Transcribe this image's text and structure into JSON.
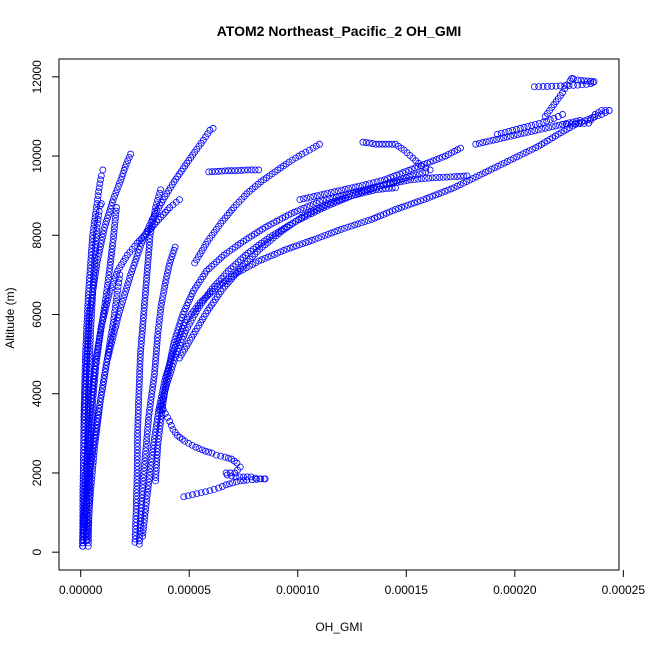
{
  "chart_data": {
    "type": "scatter",
    "title": "ATOM2 Northeast_Pacific_2 OH_GMI",
    "xlabel": "OH_GMI",
    "ylabel": "Altitude (m)",
    "xlim": [
      -1e-05,
      0.000248
    ],
    "ylim": [
      -450,
      12450
    ],
    "xticks": [
      0,
      5e-05,
      0.0001,
      0.00015,
      0.0002,
      0.00025
    ],
    "xtick_labels": [
      "0.00000",
      "0.00005",
      "0.00010",
      "0.00015",
      "0.00020",
      "0.00025"
    ],
    "yticks": [
      0,
      2000,
      4000,
      6000,
      8000,
      10000,
      12000
    ],
    "ytick_labels": [
      "0",
      "2000",
      "4000",
      "6000",
      "8000",
      "10000",
      "12000"
    ],
    "marker": "open-circle",
    "grid": false,
    "legend": "none",
    "colors": {
      "points": "#0000ff",
      "axes": "#000000"
    },
    "series": [
      {
        "x": [
          8e-07,
          1e-06,
          1.2e-06,
          1.5e-06,
          2.2e-06,
          3.5e-06,
          5.5e-06,
          7.5e-06,
          8.5e-06,
          9.5e-06,
          1.02e-05
        ],
        "y": [
          150,
          900,
          2000,
          3500,
          5000,
          6500,
          8000,
          8800,
          9200,
          9500,
          9650
        ]
      },
      {
        "x": [
          2.5e-06,
          2.8e-06,
          3e-06,
          3.5e-06,
          4.5e-06,
          6e-06,
          7.5e-06,
          8.5e-06,
          9e-06,
          9.5e-06
        ],
        "y": [
          300,
          1200,
          2500,
          4000,
          5500,
          7000,
          8200,
          8600,
          8750,
          8800
        ]
      },
      {
        "x": [
          1e-06,
          1e-06,
          1.5e-06,
          2.5e-06,
          4e-06,
          7.5e-06,
          1.1e-05,
          1.5e-05,
          1.85e-05,
          2.1e-05,
          2.3e-05
        ],
        "y": [
          150,
          1500,
          3000,
          4500,
          6000,
          7300,
          8200,
          8900,
          9400,
          9800,
          10050
        ]
      },
      {
        "x": [
          3e-06,
          4.5e-06,
          6.5e-06,
          9e-06,
          1.2e-05,
          1.5e-05,
          1.7e-05,
          1.8e-05
        ],
        "y": [
          300,
          1500,
          2700,
          3800,
          4800,
          5800,
          6600,
          7000
        ]
      },
      {
        "x": [
          1e-06,
          3.5e-06,
          7.5e-06,
          1.2e-05,
          1.75e-05,
          2.3e-05,
          2.8e-05,
          3.3e-05,
          3.8e-05,
          4.3e-05,
          4.8e-05,
          5.25e-05,
          5.65e-05,
          5.95e-05,
          6.1e-05
        ],
        "y": [
          300,
          1800,
          3300,
          4800,
          6000,
          7000,
          7800,
          8400,
          8900,
          9350,
          9750,
          10100,
          10400,
          10650,
          10700
        ]
      },
      {
        "x": [
          3.5e-06,
          4e-06,
          4.5e-06,
          5.5e-06,
          7e-06,
          9e-06,
          1.1e-05,
          1.3e-05,
          1.5e-05,
          1.65e-05
        ],
        "y": [
          150,
          1500,
          2800,
          3800,
          4700,
          5500,
          6200,
          7000,
          7900,
          8700
        ]
      },
      {
        "x": [
          9e-07,
          2.2e-06,
          4e-06,
          6.5e-06,
          9.5e-06,
          1.3e-05,
          1.7e-05,
          2.15e-05,
          2.6e-05,
          3.1e-05,
          3.6e-05,
          4.1e-05,
          4.55e-05
        ],
        "y": [
          300,
          1800,
          3300,
          4700,
          5700,
          6500,
          7100,
          7500,
          7800,
          8100,
          8400,
          8700,
          8900
        ]
      },
      {
        "x": [
          2.5e-05,
          2.55e-05,
          2.6e-05,
          2.62e-05,
          2.68e-05,
          2.75e-05,
          2.9e-05,
          3.05e-05,
          3.2e-05,
          3.45e-05,
          3.68e-05
        ],
        "y": [
          250,
          1000,
          2000,
          3000,
          4000,
          5000,
          6000,
          7000,
          8000,
          8700,
          9150
        ]
      },
      {
        "x": [
          2.7e-05,
          2.8e-05,
          2.95e-05,
          3.15e-05,
          3.4e-05,
          3.55e-05,
          3.7e-05,
          3.9e-05,
          4.1e-05,
          4.35e-05
        ],
        "y": [
          200,
          1200,
          2300,
          3500,
          4500,
          5500,
          6200,
          6800,
          7300,
          7700
        ]
      },
      {
        "x": [
          2.85e-05,
          3.1e-05,
          3.35e-05,
          3.6e-05,
          3.9e-05,
          4.3e-05,
          4.8e-05,
          5.5e-05,
          6.3e-05,
          7.2e-05,
          8.2e-05,
          9.5e-05,
          0.000108,
          0.00012,
          0.000134,
          0.000145,
          0.000158,
          0.000172,
          0.000185,
          0.000198,
          0.000211,
          0.00022,
          0.000228,
          0.000235,
          0.00024,
          0.0002435
        ],
        "y": [
          400,
          1600,
          2700,
          3600,
          4400,
          5100,
          5800,
          6300,
          6700,
          7050,
          7350,
          7650,
          7900,
          8150,
          8400,
          8650,
          8900,
          9200,
          9550,
          9900,
          10250,
          10550,
          10800,
          10950,
          11050,
          11150
        ]
      },
      {
        "x": [
          3.45e-05,
          3.55e-05,
          3.75e-05,
          4e-05,
          4.3e-05,
          4.7e-05,
          5.2e-05,
          5.8e-05,
          6.6e-05,
          7.5e-05,
          8.5e-05,
          9.7e-05,
          0.00011,
          0.000124,
          0.000138,
          0.000152,
          0.000162,
          0.000172,
          0.000178
        ],
        "y": [
          1800,
          2700,
          3600,
          4500,
          5300,
          6000,
          6600,
          7100,
          7500,
          7850,
          8200,
          8550,
          8850,
          9050,
          9250,
          9400,
          9450,
          9480,
          9500
        ]
      },
      {
        "x": [
          3.65e-05,
          4e-05,
          4.4e-05,
          4.85e-05,
          5.4e-05,
          6.05e-05,
          6.8e-05,
          7.7e-05,
          8.7e-05,
          9.9e-05,
          0.000112,
          0.000125,
          0.000138,
          0.00015,
          0.000159
        ],
        "y": [
          3600,
          4300,
          5000,
          5600,
          6150,
          6650,
          7100,
          7550,
          7950,
          8350,
          8700,
          9000,
          9250,
          9450,
          9600
        ]
      },
      {
        "x": [
          4.55e-05,
          5.2e-05,
          5.85e-05,
          6.55e-05,
          7.35e-05,
          8.25e-05,
          9.25e-05,
          0.000103,
          0.000114,
          0.000125,
          0.000136,
          0.000145
        ],
        "y": [
          4900,
          5500,
          6100,
          6650,
          7150,
          7650,
          8100,
          8500,
          8800,
          9000,
          9150,
          9200
        ]
      },
      {
        "x": [
          5.25e-05,
          5.85e-05,
          6.45e-05,
          7.05e-05,
          7.65e-05,
          8.3e-05,
          8.95e-05,
          9.6e-05,
          0.000102,
          0.000107,
          0.00011
        ],
        "y": [
          7300,
          7850,
          8300,
          8700,
          9050,
          9350,
          9600,
          9850,
          10050,
          10200,
          10300
        ]
      },
      {
        "x": [
          5.9e-05,
          6.2e-05,
          6.5e-05,
          6.8e-05,
          7.1e-05,
          7.4e-05,
          7.7e-05,
          8.2e-05
        ],
        "y": [
          9600,
          9610,
          9620,
          9630,
          9630,
          9640,
          9650,
          9650
        ]
      },
      {
        "x": [
          3.7e-05,
          3.9e-05,
          4.1e-05,
          4.25e-05,
          4.45e-05,
          4.8e-05,
          5.3e-05,
          5.75e-05,
          6.05e-05,
          6.25e-05,
          6.65e-05,
          6.95e-05,
          7.2e-05,
          7.35e-05,
          7.1e-05,
          6.7e-05,
          6.75e-05,
          7.15e-05,
          7.5e-05,
          7.85e-05,
          8.05e-05,
          8.25e-05,
          8.45e-05
        ],
        "y": [
          3700,
          3500,
          3300,
          3100,
          2950,
          2800,
          2650,
          2550,
          2500,
          2450,
          2400,
          2350,
          2250,
          2150,
          2000,
          2000,
          1950,
          1900,
          1900,
          1900,
          1870,
          1850,
          1850
        ]
      },
      {
        "x": [
          4.75e-05,
          5.15e-05,
          5.55e-05,
          5.95e-05,
          6.35e-05,
          6.7e-05,
          7e-05,
          7.35e-05,
          7.65e-05,
          7.9e-05,
          8.1e-05,
          8.3e-05,
          8.5e-05
        ],
        "y": [
          1400,
          1450,
          1500,
          1550,
          1620,
          1700,
          1750,
          1800,
          1820,
          1830,
          1840,
          1850,
          1850
        ]
      },
      {
        "x": [
          0.00013,
          0.000133,
          0.000136,
          0.000139,
          0.000142,
          0.000145,
          0.000149,
          0.000153,
          0.000157,
          0.000161
        ],
        "y": [
          10350,
          10330,
          10300,
          10300,
          10300,
          10300,
          10150,
          9950,
          9750,
          9650
        ]
      },
      {
        "x": [
          0.000101,
          0.000109,
          0.000117,
          0.000125,
          0.000133,
          0.00014,
          0.000147,
          0.000154,
          0.000161,
          0.000168,
          0.000175
        ],
        "y": [
          8900,
          9000,
          9100,
          9200,
          9300,
          9400,
          9550,
          9700,
          9850,
          10000,
          10200
        ]
      },
      {
        "x": [
          0.000182,
          0.00019,
          0.000198,
          0.000206,
          0.000214,
          0.000222,
          0.00023
        ],
        "y": [
          10300,
          10400,
          10500,
          10600,
          10700,
          10800,
          10900
        ]
      },
      {
        "x": [
          0.000209,
          0.000213,
          0.000217,
          0.000221,
          0.000225,
          0.000229,
          0.000233,
          0.000235,
          0.000236,
          0.0002365
        ],
        "y": [
          11750,
          11755,
          11760,
          11770,
          11780,
          11790,
          11810,
          11830,
          11860,
          11880
        ]
      },
      {
        "x": [
          0.000214,
          0.000218,
          0.000222,
          0.000224,
          0.0002255,
          0.0002262,
          0.000227,
          0.000229,
          0.000232,
          0.000235
        ],
        "y": [
          11000,
          11300,
          11600,
          11800,
          11900,
          11960,
          11950,
          11920,
          11900,
          11890
        ]
      },
      {
        "x": [
          0.000222,
          0.000226,
          0.00023,
          0.000234,
          0.000237,
          0.00024,
          0.0002435
        ],
        "y": [
          10800,
          10810,
          10820,
          10830,
          11050,
          11150,
          11150
        ]
      },
      {
        "x": [
          0.000192,
          0.000199,
          0.000206,
          0.000213,
          0.000218,
          0.000222
        ],
        "y": [
          10550,
          10650,
          10750,
          10850,
          10950,
          11050
        ]
      }
    ]
  }
}
